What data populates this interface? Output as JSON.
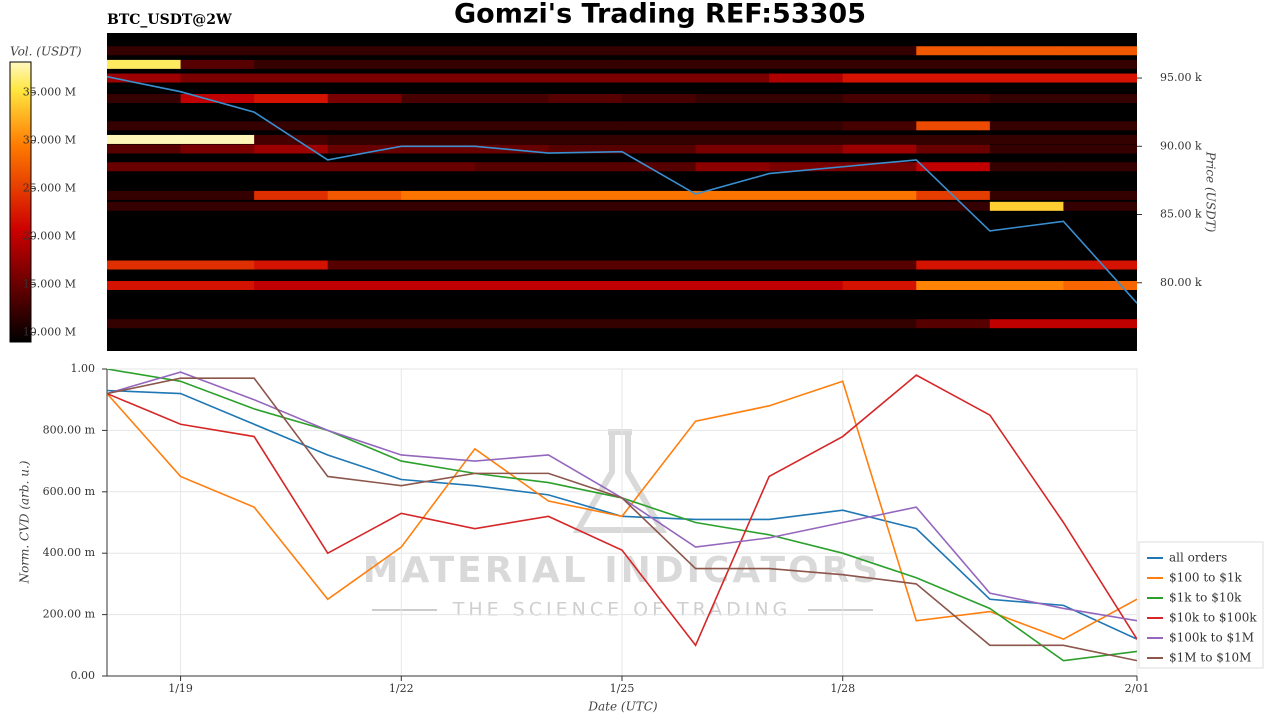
{
  "chart_data": [
    {
      "type": "heatmap",
      "title": "Gomzi's Trading REF:53305",
      "subtitle": "BTC_USDT@2W",
      "x": [
        "1/18",
        "1/19",
        "1/20",
        "1/21",
        "1/22",
        "1/23",
        "1/24",
        "1/25",
        "1/26",
        "1/27",
        "1/28",
        "1/29",
        "1/30",
        "1/31",
        "2/01"
      ],
      "xlim": [
        "1/18",
        "2/01"
      ],
      "y": [
        97000,
        96000,
        95000,
        93500,
        91500,
        90500,
        89800,
        88500,
        86400,
        85600,
        81300,
        79800,
        77000
      ],
      "z": [
        [
          12000000,
          12000000,
          12000000,
          12000000,
          12000000,
          12000000,
          12000000,
          12000000,
          12000000,
          12000000,
          12000000,
          27000000,
          27000000,
          27000000
        ],
        [
          36000000,
          14000000,
          12000000,
          12000000,
          12000000,
          12000000,
          12000000,
          12000000,
          12000000,
          12000000,
          12000000,
          12000000,
          12000000,
          12000000
        ],
        [
          18000000,
          16000000,
          16000000,
          16000000,
          16000000,
          16000000,
          16000000,
          16000000,
          16000000,
          19000000,
          22000000,
          22000000,
          22000000,
          22000000
        ],
        [
          12000000,
          20000000,
          22000000,
          16000000,
          13000000,
          13000000,
          14000000,
          13000000,
          12000000,
          12000000,
          13000000,
          13000000,
          12000000,
          12000000
        ],
        [
          12000000,
          12000000,
          12000000,
          12000000,
          12000000,
          12000000,
          12000000,
          12000000,
          12000000,
          12000000,
          13000000,
          26000000,
          12000000,
          12000000
        ],
        [
          38000000,
          38000000,
          13000000,
          12000000,
          12000000,
          12000000,
          12000000,
          12000000,
          12000000,
          12000000,
          12000000,
          12000000,
          12000000,
          12000000
        ],
        [
          14000000,
          16000000,
          18000000,
          15000000,
          15000000,
          15000000,
          14000000,
          14000000,
          16000000,
          16000000,
          18000000,
          15000000,
          12000000,
          12000000
        ],
        [
          15000000,
          15000000,
          15000000,
          15000000,
          15000000,
          14000000,
          14000000,
          14000000,
          17000000,
          16000000,
          16000000,
          20000000,
          12000000,
          12000000
        ],
        [
          12000000,
          12000000,
          24000000,
          27000000,
          29000000,
          29000000,
          29000000,
          29000000,
          29000000,
          29000000,
          29000000,
          25000000,
          12000000,
          12000000
        ],
        [
          12000000,
          12000000,
          12000000,
          12000000,
          12000000,
          12000000,
          12000000,
          12000000,
          12000000,
          12000000,
          12000000,
          12000000,
          34000000,
          12000000
        ],
        [
          24000000,
          24000000,
          22000000,
          14000000,
          14000000,
          14000000,
          14000000,
          14000000,
          14000000,
          14000000,
          14000000,
          22000000,
          22000000,
          22000000
        ],
        [
          22000000,
          22000000,
          20000000,
          20000000,
          20000000,
          20000000,
          20000000,
          20000000,
          20000000,
          20000000,
          22000000,
          30000000,
          30000000,
          28000000
        ],
        [
          12000000,
          12000000,
          12000000,
          12000000,
          12000000,
          12000000,
          12000000,
          12000000,
          12000000,
          12000000,
          12000000,
          14000000,
          20000000,
          20000000
        ]
      ],
      "price": {
        "color": "#3a8fd0",
        "values": [
          95100,
          94000,
          92500,
          89000,
          90000,
          90000,
          89500,
          89600,
          86500,
          88000,
          88500,
          89000,
          83800,
          84500,
          78500
        ]
      },
      "ylabel": "Price (USDT)",
      "ylim": [
        75000,
        98300
      ],
      "yticks": [
        {
          "value": 80000,
          "label": "80.00 k"
        },
        {
          "value": 85000,
          "label": "85.00 k"
        },
        {
          "value": 90000,
          "label": "90.00 k"
        },
        {
          "value": 95000,
          "label": "95.00 k"
        }
      ],
      "clabel": "Vol. (USDT)",
      "clim": [
        9000000,
        38200000
      ],
      "cticks": [
        {
          "value": 10000000,
          "label": "10.000 M"
        },
        {
          "value": 15000000,
          "label": "15.000 M"
        },
        {
          "value": 20000000,
          "label": "20.000 M"
        },
        {
          "value": 25000000,
          "label": "25.000 M"
        },
        {
          "value": 30000000,
          "label": "30.000 M"
        },
        {
          "value": 35000000,
          "label": "35.000 M"
        }
      ]
    },
    {
      "type": "line",
      "xlabel": "Date (UTC)",
      "ylabel": "Norm. CVD (arb. u.)",
      "watermark": "MATERIAL INDICATORS",
      "watermark_sub": "THE SCIENCE OF TRADING",
      "x": [
        "1/18",
        "1/19",
        "1/20",
        "1/21",
        "1/22",
        "1/23",
        "1/24",
        "1/25",
        "1/26",
        "1/27",
        "1/28",
        "1/29",
        "1/30",
        "1/31",
        "2/01"
      ],
      "xlim": [
        "1/18",
        "2/01"
      ],
      "xticks": [
        "1/19",
        "1/22",
        "1/25",
        "1/28",
        "2/01"
      ],
      "ylim": [
        0,
        1
      ],
      "yticks": [
        {
          "value": 0,
          "label": "0.00"
        },
        {
          "value": 0.2,
          "label": "200.00 m"
        },
        {
          "value": 0.4,
          "label": "400.00 m"
        },
        {
          "value": 0.6,
          "label": "600.00 m"
        },
        {
          "value": 0.8,
          "label": "800.00 m"
        },
        {
          "value": 1,
          "label": "1.00"
        }
      ],
      "grid": true,
      "legend": "lower right",
      "series": [
        {
          "name": "all orders",
          "color": "#1f77b4",
          "values": [
            0.93,
            0.92,
            0.82,
            0.72,
            0.64,
            0.62,
            0.59,
            0.52,
            0.51,
            0.51,
            0.54,
            0.48,
            0.25,
            0.23,
            0.12
          ]
        },
        {
          "name": "$100 to $1k",
          "color": "#ff7f0e",
          "values": [
            0.92,
            0.65,
            0.55,
            0.25,
            0.42,
            0.74,
            0.57,
            0.52,
            0.83,
            0.88,
            0.96,
            0.18,
            0.21,
            0.12,
            0.25
          ]
        },
        {
          "name": "$1k to $10k",
          "color": "#2ca02c",
          "values": [
            1.0,
            0.96,
            0.87,
            0.8,
            0.7,
            0.66,
            0.63,
            0.58,
            0.5,
            0.46,
            0.4,
            0.32,
            0.22,
            0.05,
            0.08
          ]
        },
        {
          "name": "$10k to $100k",
          "color": "#d62728",
          "values": [
            0.92,
            0.82,
            0.78,
            0.4,
            0.53,
            0.48,
            0.52,
            0.41,
            0.1,
            0.65,
            0.78,
            0.98,
            0.85,
            0.5,
            0.12
          ]
        },
        {
          "name": "$100k to $1M",
          "color": "#9467bd",
          "values": [
            0.92,
            0.99,
            0.9,
            0.8,
            0.72,
            0.7,
            0.72,
            0.58,
            0.42,
            0.45,
            0.5,
            0.55,
            0.27,
            0.22,
            0.18
          ]
        },
        {
          "name": "$1M to $10M",
          "color": "#8c564b",
          "values": [
            0.92,
            0.97,
            0.97,
            0.65,
            0.62,
            0.66,
            0.66,
            0.58,
            0.35,
            0.35,
            0.33,
            0.3,
            0.1,
            0.1,
            0.05
          ]
        }
      ]
    }
  ]
}
